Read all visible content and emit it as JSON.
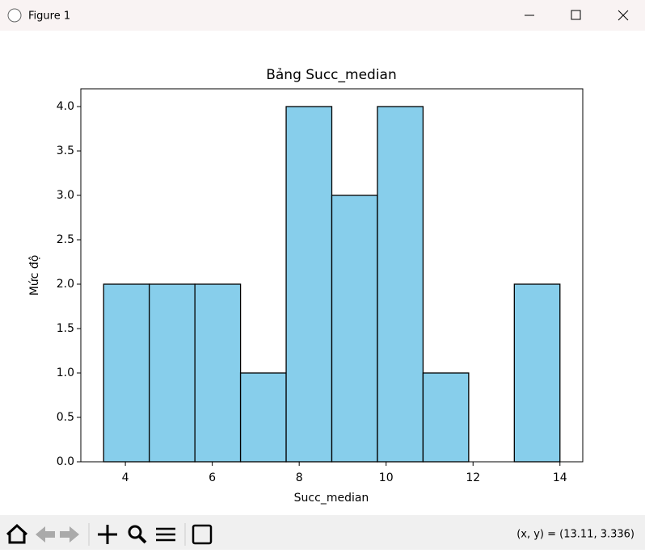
{
  "window": {
    "title": "Figure 1",
    "status": "(x, y) = (13.11, 3.336)"
  },
  "chart_data": {
    "type": "histogram",
    "title": "Bảng Succ_median",
    "x_label": "Succ_median",
    "y_label": "Mức độ",
    "bins": [
      3.5,
      4.55,
      5.6,
      6.65,
      7.7,
      8.75,
      9.8,
      10.85,
      11.9,
      12.95,
      14.0
    ],
    "values": [
      2,
      2,
      2,
      1,
      4,
      3,
      4,
      1,
      0,
      2
    ],
    "color": "#87ceeb",
    "edgecolor": "#000000",
    "xlim": [
      2.975,
      14.525
    ],
    "xticks": [
      4,
      6,
      8,
      10,
      12,
      14
    ],
    "ylim": [
      0,
      4.2
    ],
    "yticks": [
      {
        "value": 0,
        "label": "0.0"
      },
      {
        "value": 0.5,
        "label": "0.5"
      },
      {
        "value": 1,
        "label": "1.0"
      },
      {
        "value": 1.5,
        "label": "1.5"
      },
      {
        "value": 2,
        "label": "2.0"
      },
      {
        "value": 2.5,
        "label": "2.5"
      },
      {
        "value": 3,
        "label": "3.0"
      },
      {
        "value": 3.5,
        "label": "3.5"
      },
      {
        "value": 4,
        "label": "4.0"
      }
    ]
  }
}
